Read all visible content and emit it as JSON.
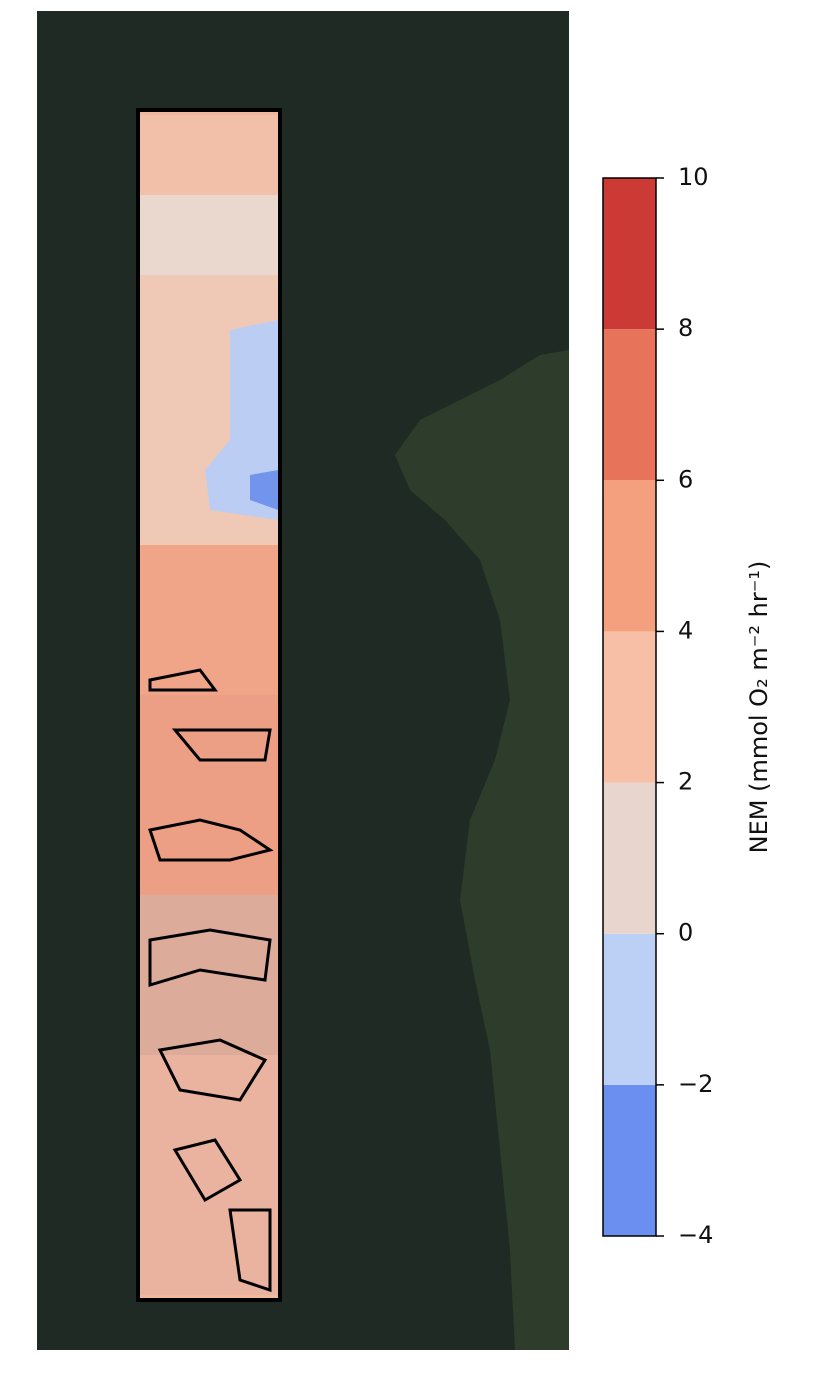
{
  "colorbar": {
    "label": "NEM (mmol O₂ m⁻² hr⁻¹)",
    "ticks": [
      {
        "value": -4,
        "label": "−4"
      },
      {
        "value": -2,
        "label": "−2"
      },
      {
        "value": 0,
        "label": "0"
      },
      {
        "value": 2,
        "label": "2"
      },
      {
        "value": 4,
        "label": "4"
      },
      {
        "value": 6,
        "label": "6"
      },
      {
        "value": 8,
        "label": "8"
      },
      {
        "value": 10,
        "label": "10"
      }
    ],
    "colors": [
      "#6b8ff0",
      "#bcd0f6",
      "#e8d6ce",
      "#f6bfa6",
      "#f4a07f",
      "#e7735a",
      "#cc3a36"
    ]
  }
}
